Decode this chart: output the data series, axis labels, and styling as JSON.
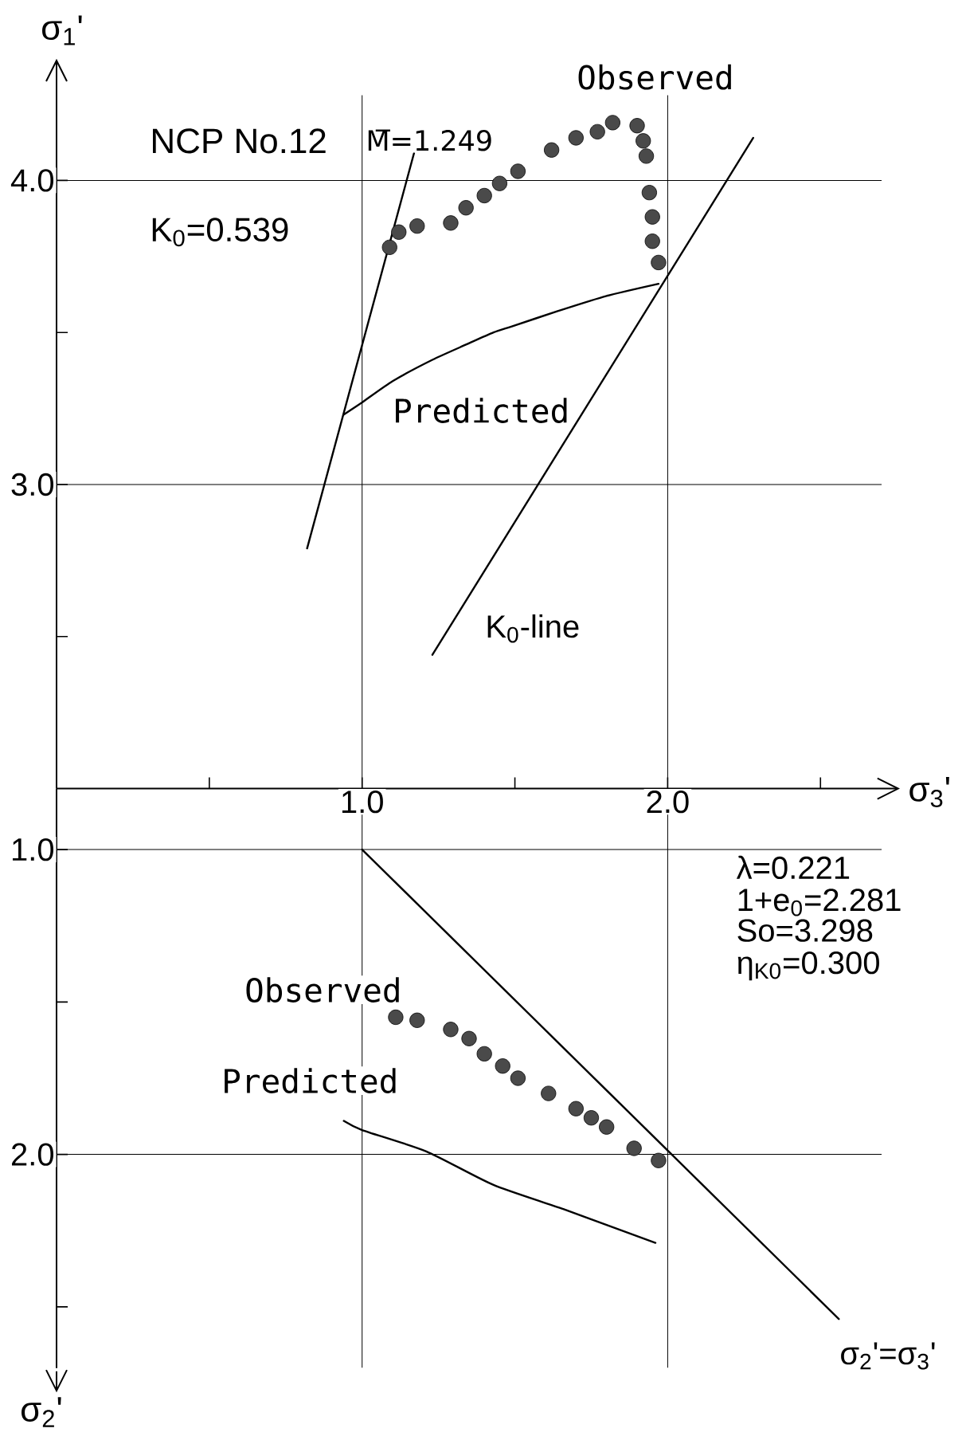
{
  "chart_data": [
    {
      "type": "scatter",
      "xlabel": "σ$_{3}$'",
      "ylabel": "σ$_{1}$'",
      "annotations": [
        "NCP No.12",
        "K$_{0}$=0.539"
      ],
      "xlim": [
        0,
        2.7
      ],
      "ylim": [
        2.0,
        4.28
      ],
      "xticks": [
        {
          "value": 0.5,
          "label": null
        },
        {
          "value": 1,
          "label": "1.0"
        },
        {
          "value": 1.5,
          "label": null
        },
        {
          "value": 2,
          "label": "2.0"
        },
        {
          "value": 2.5,
          "label": null
        }
      ],
      "yticks": [
        {
          "value": 2.5,
          "label": null
        },
        {
          "value": 3,
          "label": "3.0"
        },
        {
          "value": 3.5,
          "label": null
        },
        {
          "value": 4,
          "label": "4.0"
        }
      ],
      "grid": true,
      "series": [
        {
          "name": "Observed",
          "marker": "circle",
          "color": "#4a4a4a",
          "x": [
            1.09,
            1.12,
            1.18,
            1.29,
            1.34,
            1.4,
            1.45,
            1.51,
            1.62,
            1.7,
            1.77,
            1.82,
            1.9,
            1.92,
            1.93,
            1.94,
            1.95,
            1.95,
            1.97
          ],
          "values": [
            3.78,
            3.83,
            3.85,
            3.86,
            3.91,
            3.95,
            3.99,
            4.03,
            4.1,
            4.14,
            4.16,
            4.19,
            4.18,
            4.13,
            4.08,
            3.96,
            3.88,
            3.8,
            3.73
          ]
        },
        {
          "name": "Predicted",
          "type": "line",
          "color": "#000000",
          "x": [
            0.94,
            1.0,
            1.1,
            1.23,
            1.34,
            1.43,
            1.49,
            1.64,
            1.8,
            1.97
          ],
          "values": [
            3.23,
            3.27,
            3.34,
            3.41,
            3.46,
            3.5,
            3.52,
            3.57,
            3.62,
            3.66
          ]
        },
        {
          "name": "M̅=1.249",
          "type": "line",
          "color": "#000000",
          "x": [
            0.82,
            1.17
          ],
          "values": [
            2.79,
            4.09
          ]
        },
        {
          "name": "K$_{0}$-line",
          "type": "line",
          "color": "#000000",
          "x": [
            1.23,
            2.28
          ],
          "values": [
            2.44,
            4.14
          ]
        }
      ]
    },
    {
      "type": "scatter",
      "ylabel": "σ$_{2}$'",
      "annotations": [
        "λ=0.221",
        "1+e$_{0}$=2.281",
        "So=3.298",
        "η$_{K0}$=0.300"
      ],
      "xlim": [
        0,
        2.7
      ],
      "ylim": [
        2.7,
        0.8
      ],
      "yticks": [
        {
          "value": 1,
          "label": "1.0"
        },
        {
          "value": 1.5,
          "label": null
        },
        {
          "value": 2,
          "label": "2.0"
        },
        {
          "value": 2.5,
          "label": null
        }
      ],
      "tick_labels": "y",
      "grid": "y",
      "ref_lines": [
        {
          "axis": "x",
          "value": 1
        },
        {
          "axis": "x",
          "value": 2
        }
      ],
      "series": [
        {
          "name": "Observed",
          "marker": "circle",
          "color": "#4a4a4a",
          "x": [
            1.11,
            1.18,
            1.29,
            1.35,
            1.4,
            1.46,
            1.51,
            1.61,
            1.7,
            1.75,
            1.8,
            1.89,
            1.97
          ],
          "values": [
            1.55,
            1.56,
            1.59,
            1.62,
            1.67,
            1.71,
            1.75,
            1.8,
            1.85,
            1.88,
            1.91,
            1.98,
            2.02
          ]
        },
        {
          "name": "Predicted",
          "type": "line",
          "color": "#000000",
          "x": [
            0.94,
            1.0,
            1.21,
            1.43,
            1.66,
            1.96
          ],
          "values": [
            1.89,
            1.92,
            1.99,
            2.1,
            2.18,
            2.29
          ]
        },
        {
          "name": "σ$_{2}$'=σ$_{3}$'",
          "type": "line",
          "color": "#000000",
          "x": [
            1.0,
            2.56
          ],
          "values": [
            1.0,
            2.54
          ]
        }
      ]
    }
  ]
}
